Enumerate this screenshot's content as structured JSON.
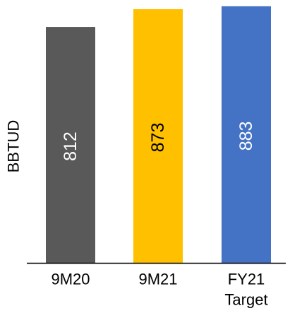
{
  "chart_data": {
    "type": "bar",
    "categories": [
      [
        "9M20"
      ],
      [
        "9M21"
      ],
      [
        "FY21",
        "Target"
      ]
    ],
    "values": [
      812,
      873,
      883
    ],
    "colors": [
      "#595959",
      "#FFC000",
      "#4472C4"
    ],
    "label_colors": [
      "#ffffff",
      "#000000",
      "#ffffff"
    ],
    "title": "",
    "xlabel": "",
    "ylabel": "BBTUD",
    "ylim": [
      0,
      890
    ],
    "data_labels": true,
    "data_label_orientation": "vertical",
    "grid": false,
    "legend": "none"
  }
}
